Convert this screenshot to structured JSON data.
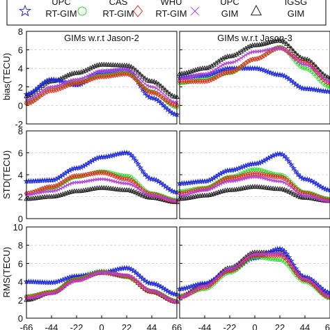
{
  "legend": {
    "entries": [
      {
        "line1": "UPC",
        "line2": "RT-GIM",
        "marker": "star",
        "color": "#1f2bd6"
      },
      {
        "line1": "CAS",
        "line2": "RT-GIM",
        "marker": "circle",
        "color": "#22dd22"
      },
      {
        "line1": "WHU",
        "line2": "RT-GIM",
        "marker": "diamond",
        "color": "#e8251d"
      },
      {
        "line1": "UPC",
        "line2": "GIM",
        "marker": "x",
        "color": "#b23fd6"
      },
      {
        "line1": "IGSG",
        "line2": "GIM",
        "marker": "triangle",
        "color": "#222222"
      }
    ]
  },
  "chart_data": [
    {
      "type": "line",
      "title": "GIMs w.r.t Jason-2",
      "ylabel": "bias(TECU)",
      "xlim": [
        -66,
        66
      ],
      "ylim": [
        -2,
        8
      ],
      "yticks": [
        -2,
        0,
        2,
        4,
        6,
        8
      ],
      "grid": "dashed-horizontal",
      "x": [
        -66,
        -44,
        -22,
        0,
        22,
        44,
        66
      ],
      "series": [
        {
          "name": "UPC RT-GIM",
          "values": [
            1.2,
            2.8,
            2.2,
            3.6,
            3.8,
            0.8,
            -1.0
          ]
        },
        {
          "name": "CAS RT-GIM",
          "values": [
            0.3,
            1.8,
            2.5,
            3.2,
            3.5,
            1.5,
            -0.2
          ]
        },
        {
          "name": "WHU RT-GIM",
          "values": [
            0.2,
            1.6,
            2.4,
            3.1,
            3.4,
            1.4,
            0.0
          ]
        },
        {
          "name": "UPC GIM",
          "values": [
            0.6,
            2.0,
            2.8,
            3.7,
            3.9,
            2.0,
            0.3
          ]
        },
        {
          "name": "IGSG GIM",
          "values": [
            1.0,
            2.6,
            3.5,
            4.4,
            4.3,
            2.6,
            0.9
          ]
        }
      ]
    },
    {
      "type": "line",
      "title": "GIMs w.r.t Jason-3",
      "ylabel": "",
      "xlim": [
        -66,
        66
      ],
      "ylim": [
        -2,
        8
      ],
      "yticks": [
        -2,
        0,
        2,
        4,
        6,
        8
      ],
      "grid": "dashed-horizontal",
      "x": [
        -66,
        -44,
        -22,
        0,
        22,
        44,
        66
      ],
      "series": [
        {
          "name": "UPC RT-GIM",
          "values": [
            3.0,
            3.2,
            4.0,
            4.0,
            3.3,
            1.8,
            1.5
          ]
        },
        {
          "name": "CAS RT-GIM",
          "values": [
            2.4,
            2.8,
            3.5,
            5.0,
            6.3,
            4.0,
            2.0
          ]
        },
        {
          "name": "WHU RT-GIM",
          "values": [
            2.6,
            2.6,
            3.6,
            5.0,
            6.2,
            4.6,
            2.4
          ]
        },
        {
          "name": "UPC GIM",
          "values": [
            2.9,
            3.4,
            4.6,
            5.8,
            6.2,
            4.4,
            2.6
          ]
        },
        {
          "name": "IGSG GIM",
          "values": [
            3.4,
            4.0,
            5.3,
            6.5,
            7.0,
            5.0,
            3.0
          ]
        }
      ]
    },
    {
      "type": "line",
      "title": "",
      "ylabel": "STD(TECU)",
      "xlim": [
        -66,
        66
      ],
      "ylim": [
        0,
        8
      ],
      "yticks": [
        0,
        2,
        4,
        6,
        8
      ],
      "grid": "dashed-horizontal",
      "x": [
        -66,
        -44,
        -22,
        0,
        22,
        44,
        66
      ],
      "series": [
        {
          "name": "UPC RT-GIM",
          "values": [
            3.4,
            3.5,
            4.6,
            5.6,
            6.0,
            3.6,
            2.4
          ]
        },
        {
          "name": "CAS RT-GIM",
          "values": [
            2.3,
            2.8,
            3.8,
            4.3,
            3.9,
            2.3,
            1.7
          ]
        },
        {
          "name": "WHU RT-GIM",
          "values": [
            2.3,
            2.9,
            3.9,
            4.2,
            3.6,
            2.2,
            1.6
          ]
        },
        {
          "name": "UPC GIM",
          "values": [
            2.2,
            2.5,
            3.3,
            3.6,
            3.2,
            2.1,
            1.6
          ]
        },
        {
          "name": "IGSG GIM",
          "values": [
            1.8,
            2.0,
            2.5,
            2.8,
            2.6,
            1.9,
            1.5
          ]
        }
      ]
    },
    {
      "type": "line",
      "title": "",
      "ylabel": "",
      "xlim": [
        -66,
        66
      ],
      "ylim": [
        0,
        8
      ],
      "yticks": [
        0,
        2,
        4,
        6,
        8
      ],
      "grid": "dashed-horizontal",
      "x": [
        -66,
        -44,
        -22,
        0,
        22,
        44,
        66
      ],
      "series": [
        {
          "name": "UPC RT-GIM",
          "values": [
            3.2,
            3.4,
            4.4,
            5.0,
            5.9,
            3.6,
            2.6
          ]
        },
        {
          "name": "CAS RT-GIM",
          "values": [
            2.5,
            2.8,
            3.8,
            4.5,
            4.0,
            2.4,
            1.8
          ]
        },
        {
          "name": "WHU RT-GIM",
          "values": [
            2.3,
            2.7,
            3.7,
            4.1,
            3.8,
            2.3,
            1.7
          ]
        },
        {
          "name": "UPC GIM",
          "values": [
            2.1,
            2.6,
            3.4,
            3.8,
            3.4,
            2.1,
            1.6
          ]
        },
        {
          "name": "IGSG GIM",
          "values": [
            1.8,
            2.1,
            2.6,
            2.9,
            2.7,
            1.9,
            1.6
          ]
        }
      ]
    },
    {
      "type": "line",
      "title": "",
      "ylabel": "RMS(TECU)",
      "xlim": [
        -66,
        66
      ],
      "ylim": [
        0,
        10
      ],
      "yticks": [
        0,
        2,
        4,
        6,
        8,
        10
      ],
      "grid": "dashed-horizontal",
      "xticks": [
        -66,
        -44,
        -22,
        0,
        22,
        44,
        66
      ],
      "x": [
        -66,
        -44,
        -22,
        0,
        22,
        44,
        66
      ],
      "series": [
        {
          "name": "UPC RT-GIM",
          "values": [
            4.0,
            3.9,
            4.6,
            5.0,
            5.5,
            3.8,
            2.6
          ]
        },
        {
          "name": "CAS RT-GIM",
          "values": [
            2.4,
            2.9,
            4.3,
            5.1,
            4.5,
            3.0,
            1.9
          ]
        },
        {
          "name": "WHU RT-GIM",
          "values": [
            2.3,
            2.8,
            4.2,
            5.0,
            4.6,
            2.9,
            1.8
          ]
        },
        {
          "name": "UPC GIM",
          "values": [
            2.2,
            2.7,
            4.1,
            5.0,
            4.7,
            3.0,
            1.8
          ]
        },
        {
          "name": "IGSG GIM",
          "values": [
            2.0,
            2.8,
            4.4,
            5.1,
            4.6,
            2.9,
            1.8
          ]
        }
      ]
    },
    {
      "type": "line",
      "title": "",
      "ylabel": "",
      "xlim": [
        -66,
        66
      ],
      "ylim": [
        0,
        10
      ],
      "yticks": [
        0,
        2,
        4,
        6,
        8,
        10
      ],
      "grid": "dashed-horizontal",
      "xticks": [
        -66,
        -44,
        -22,
        0,
        22,
        44,
        66
      ],
      "x": [
        -66,
        -44,
        -22,
        0,
        22,
        44,
        66
      ],
      "series": [
        {
          "name": "UPC RT-GIM",
          "values": [
            3.2,
            3.8,
            5.2,
            6.6,
            7.6,
            4.5,
            2.8
          ]
        },
        {
          "name": "CAS RT-GIM",
          "values": [
            2.4,
            3.2,
            5.0,
            6.7,
            6.4,
            4.0,
            2.2
          ]
        },
        {
          "name": "WHU RT-GIM",
          "values": [
            2.3,
            3.4,
            5.2,
            6.9,
            6.9,
            4.2,
            2.3
          ]
        },
        {
          "name": "UPC GIM",
          "values": [
            2.3,
            3.5,
            5.4,
            7.0,
            7.1,
            4.3,
            2.4
          ]
        },
        {
          "name": "IGSG GIM",
          "values": [
            2.4,
            3.6,
            5.5,
            7.2,
            7.2,
            4.3,
            2.4
          ]
        }
      ]
    }
  ]
}
